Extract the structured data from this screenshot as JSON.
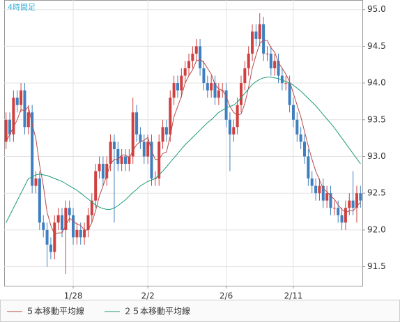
{
  "chart_data": {
    "type": "candlestick",
    "title": "4時間足",
    "categories": [
      null,
      null,
      null,
      null,
      null,
      null,
      null,
      null,
      null,
      null,
      null,
      null,
      null,
      null,
      null,
      null,
      null,
      null,
      "1/28",
      null,
      null,
      null,
      null,
      null,
      null,
      null,
      null,
      null,
      null,
      null,
      null,
      null,
      null,
      null,
      null,
      null,
      null,
      null,
      "2/2",
      null,
      null,
      null,
      null,
      null,
      null,
      null,
      null,
      null,
      null,
      null,
      null,
      null,
      null,
      null,
      null,
      null,
      null,
      null,
      null,
      "2/6",
      null,
      null,
      null,
      null,
      null,
      null,
      null,
      null,
      null,
      null,
      null,
      null,
      null,
      null,
      null,
      null,
      null,
      "2/11",
      null,
      null,
      null,
      null,
      null,
      null,
      null,
      null,
      null,
      null,
      null,
      null,
      null,
      null,
      null,
      null,
      null,
      null
    ],
    "open": [
      93.2,
      93.5,
      93.3,
      93.8,
      93.7,
      93.9,
      93.4,
      93.6,
      92.6,
      92.7,
      92.1,
      92.0,
      91.8,
      91.7,
      92.1,
      92.2,
      92.0,
      92.3,
      92.2,
      91.9,
      92.0,
      91.9,
      92.0,
      92.2,
      92.4,
      92.8,
      92.9,
      92.7,
      92.9,
      93.2,
      93.1,
      92.9,
      93.0,
      92.9,
      93.0,
      93.6,
      93.3,
      93.2,
      93.0,
      93.2,
      92.7,
      92.7,
      93.2,
      93.4,
      93.3,
      93.8,
      94.0,
      93.9,
      94.1,
      94.2,
      94.3,
      94.4,
      94.5,
      94.2,
      94.0,
      93.9,
      94.0,
      93.8,
      93.9,
      93.9,
      93.5,
      93.3,
      93.4,
      93.7,
      94.0,
      94.2,
      94.4,
      94.7,
      94.6,
      94.8,
      94.4,
      94.4,
      94.2,
      94.3,
      94.1,
      94.0,
      94.0,
      93.7,
      93.5,
      93.3,
      93.2,
      93.0,
      92.7,
      92.6,
      92.5,
      92.6,
      92.4,
      92.5,
      92.3,
      92.3,
      92.2,
      92.1,
      92.3,
      92.4,
      92.3,
      92.5
    ],
    "high": [
      93.6,
      93.6,
      93.9,
      93.9,
      94.0,
      94.0,
      93.7,
      93.7,
      92.8,
      92.8,
      92.2,
      92.1,
      91.9,
      92.2,
      92.3,
      92.3,
      92.4,
      92.4,
      92.3,
      92.1,
      92.1,
      92.1,
      92.3,
      92.5,
      92.9,
      93.0,
      93.0,
      93.0,
      93.3,
      93.3,
      93.2,
      93.1,
      93.1,
      93.1,
      93.8,
      93.7,
      93.4,
      93.3,
      93.3,
      93.3,
      92.8,
      93.3,
      93.5,
      93.5,
      93.9,
      94.1,
      94.1,
      94.2,
      94.3,
      94.4,
      94.5,
      94.6,
      94.6,
      94.3,
      94.1,
      94.1,
      94.1,
      94.0,
      94.0,
      94.0,
      93.6,
      93.5,
      93.8,
      94.1,
      94.3,
      94.5,
      94.8,
      94.8,
      94.95,
      94.9,
      94.5,
      94.5,
      94.4,
      94.4,
      94.2,
      94.1,
      94.1,
      93.8,
      93.6,
      93.4,
      93.3,
      93.1,
      92.8,
      92.7,
      92.7,
      92.7,
      92.6,
      92.6,
      92.4,
      92.4,
      92.3,
      92.4,
      92.5,
      92.8,
      92.6,
      92.6
    ],
    "low": [
      93.1,
      93.2,
      93.2,
      93.6,
      93.6,
      93.3,
      93.3,
      92.5,
      92.5,
      92.0,
      91.9,
      91.5,
      91.6,
      91.6,
      92.0,
      91.9,
      91.4,
      92.1,
      91.8,
      91.8,
      91.8,
      91.8,
      91.9,
      92.1,
      92.3,
      92.7,
      92.6,
      92.6,
      92.8,
      92.1,
      92.8,
      92.8,
      92.8,
      92.8,
      92.9,
      93.2,
      93.1,
      92.9,
      92.9,
      92.6,
      92.6,
      92.6,
      93.1,
      93.2,
      93.2,
      93.7,
      93.8,
      93.8,
      94.0,
      94.1,
      94.2,
      94.3,
      94.1,
      93.9,
      93.8,
      93.8,
      93.7,
      93.7,
      93.8,
      93.4,
      92.8,
      93.2,
      93.3,
      93.6,
      93.9,
      94.1,
      94.3,
      94.5,
      94.5,
      94.3,
      94.3,
      94.1,
      94.1,
      94.0,
      93.9,
      93.9,
      93.6,
      93.4,
      93.2,
      93.1,
      92.9,
      92.6,
      92.5,
      92.4,
      92.4,
      92.3,
      92.3,
      92.2,
      92.2,
      92.1,
      92.0,
      92.0,
      92.2,
      92.2,
      92.1,
      92.3
    ],
    "close": [
      93.5,
      93.3,
      93.8,
      93.7,
      93.9,
      93.4,
      93.6,
      92.6,
      92.7,
      92.1,
      92.0,
      91.8,
      91.7,
      92.1,
      92.2,
      92.0,
      92.3,
      92.2,
      91.9,
      92.0,
      91.9,
      92.0,
      92.2,
      92.4,
      92.8,
      92.9,
      92.7,
      92.9,
      93.2,
      93.1,
      92.9,
      93.0,
      92.9,
      93.0,
      93.6,
      93.3,
      93.2,
      93.0,
      93.2,
      92.7,
      92.7,
      93.2,
      93.4,
      93.3,
      93.8,
      94.0,
      93.9,
      94.1,
      94.2,
      94.3,
      94.4,
      94.5,
      94.2,
      94.0,
      93.9,
      94.0,
      93.8,
      93.9,
      93.9,
      93.5,
      93.3,
      93.4,
      93.7,
      94.0,
      94.2,
      94.4,
      94.7,
      94.6,
      94.8,
      94.4,
      94.4,
      94.2,
      94.3,
      94.1,
      94.0,
      94.0,
      93.7,
      93.5,
      93.3,
      93.2,
      93.0,
      92.7,
      92.6,
      92.5,
      92.6,
      92.4,
      92.5,
      92.3,
      92.3,
      92.2,
      92.1,
      92.3,
      92.4,
      92.3,
      92.5,
      92.4
    ],
    "up_color": "#d04040",
    "down_color": "#3f7fc0",
    "series": [
      {
        "name": "５本移動平均線",
        "color": "#b84a4a",
        "values": [
          93.2,
          93.3,
          93.4,
          93.5,
          93.64,
          93.62,
          93.68,
          93.44,
          93.24,
          92.88,
          92.6,
          92.24,
          92.06,
          91.94,
          91.96,
          91.96,
          92.06,
          92.16,
          92.12,
          92.08,
          92.06,
          92.0,
          92.0,
          92.1,
          92.26,
          92.46,
          92.6,
          92.74,
          92.9,
          92.96,
          92.96,
          93.02,
          93.02,
          92.98,
          93.08,
          93.16,
          93.2,
          93.22,
          93.26,
          93.08,
          92.96,
          92.96,
          93.04,
          93.06,
          93.28,
          93.54,
          93.68,
          93.82,
          94.0,
          94.1,
          94.18,
          94.3,
          94.32,
          94.28,
          94.2,
          94.12,
          93.98,
          93.92,
          93.9,
          93.82,
          93.68,
          93.6,
          93.56,
          93.58,
          93.72,
          93.94,
          94.2,
          94.38,
          94.54,
          94.58,
          94.58,
          94.48,
          94.42,
          94.28,
          94.2,
          94.12,
          94.02,
          93.86,
          93.7,
          93.54,
          93.34,
          93.14,
          92.96,
          92.8,
          92.68,
          92.56,
          92.52,
          92.46,
          92.42,
          92.34,
          92.28,
          92.24,
          92.26,
          92.26,
          92.32,
          92.38
        ]
      },
      {
        "name": "２５本移動平均線",
        "color": "#1a9a7a",
        "values": [
          92.1,
          92.2,
          92.3,
          92.4,
          92.5,
          92.6,
          92.7,
          92.72,
          92.75,
          92.76,
          92.75,
          92.74,
          92.72,
          92.7,
          92.68,
          92.66,
          92.63,
          92.6,
          92.57,
          92.54,
          92.5,
          92.46,
          92.42,
          92.38,
          92.34,
          92.31,
          92.29,
          92.28,
          92.28,
          92.3,
          92.33,
          92.37,
          92.41,
          92.46,
          92.51,
          92.55,
          92.6,
          92.63,
          92.66,
          92.68,
          92.7,
          92.75,
          92.8,
          92.86,
          92.92,
          92.98,
          93.04,
          93.1,
          93.16,
          93.21,
          93.26,
          93.31,
          93.36,
          93.41,
          93.46,
          93.5,
          93.55,
          93.6,
          93.63,
          93.66,
          93.68,
          93.7,
          93.74,
          93.8,
          93.86,
          93.92,
          93.98,
          94.02,
          94.05,
          94.07,
          94.08,
          94.08,
          94.07,
          94.06,
          94.04,
          94.02,
          94.0,
          93.97,
          93.93,
          93.89,
          93.84,
          93.79,
          93.74,
          93.69,
          93.63,
          93.57,
          93.51,
          93.45,
          93.39,
          93.32,
          93.25,
          93.18,
          93.11,
          93.04,
          92.97,
          92.9
        ]
      }
    ],
    "ylim": [
      91.24,
      95.13
    ],
    "yticks": [
      {
        "value": 91.5,
        "label": "91.5"
      },
      {
        "value": 92.0,
        "label": "92.0"
      },
      {
        "value": 92.5,
        "label": "92.5"
      },
      {
        "value": 93.0,
        "label": "93.0"
      },
      {
        "value": 93.5,
        "label": "93.5"
      },
      {
        "value": 94.0,
        "label": "94.0"
      },
      {
        "value": 94.5,
        "label": "94.5"
      },
      {
        "value": 95.0,
        "label": "95.0"
      }
    ],
    "grid": true
  }
}
